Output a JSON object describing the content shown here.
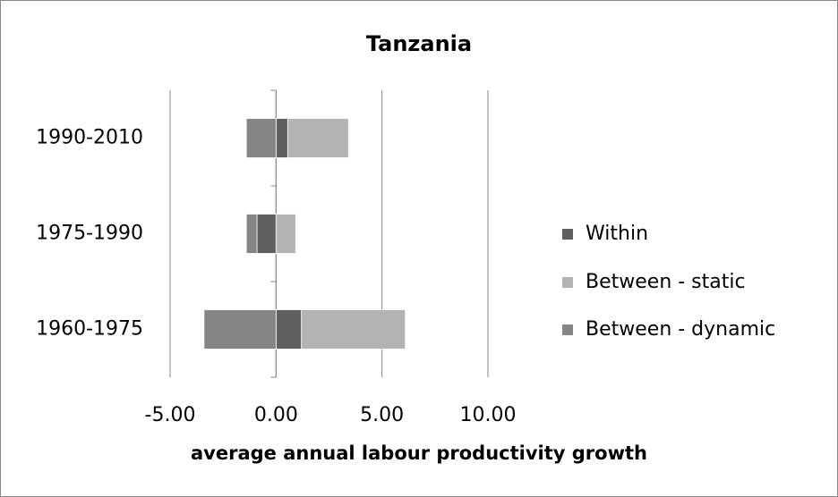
{
  "chart_data": {
    "type": "stacked-bar-horizontal",
    "title": "Tanzania",
    "x_label": "average annual labour productivity growth",
    "categories": [
      "1960-1975",
      "1975-1990",
      "1990-2010"
    ],
    "series": [
      {
        "name": "Within",
        "color": "#5f5f5f",
        "values": [
          1.2,
          -0.9,
          0.55
        ]
      },
      {
        "name": "Between - static",
        "color": "#b3b3b3",
        "values": [
          4.9,
          0.93,
          2.87
        ]
      },
      {
        "name": "Between - dynamic",
        "color": "#858585",
        "values": [
          -3.4,
          -0.5,
          -1.4
        ]
      }
    ],
    "xlim": [
      -5,
      10
    ],
    "xticks": [
      {
        "value": -5,
        "label": "-5.00"
      },
      {
        "value": 0,
        "label": "0.00"
      },
      {
        "value": 5,
        "label": "5.00"
      },
      {
        "value": 10,
        "label": "10.00"
      }
    ],
    "grid": true,
    "legend": "right"
  }
}
